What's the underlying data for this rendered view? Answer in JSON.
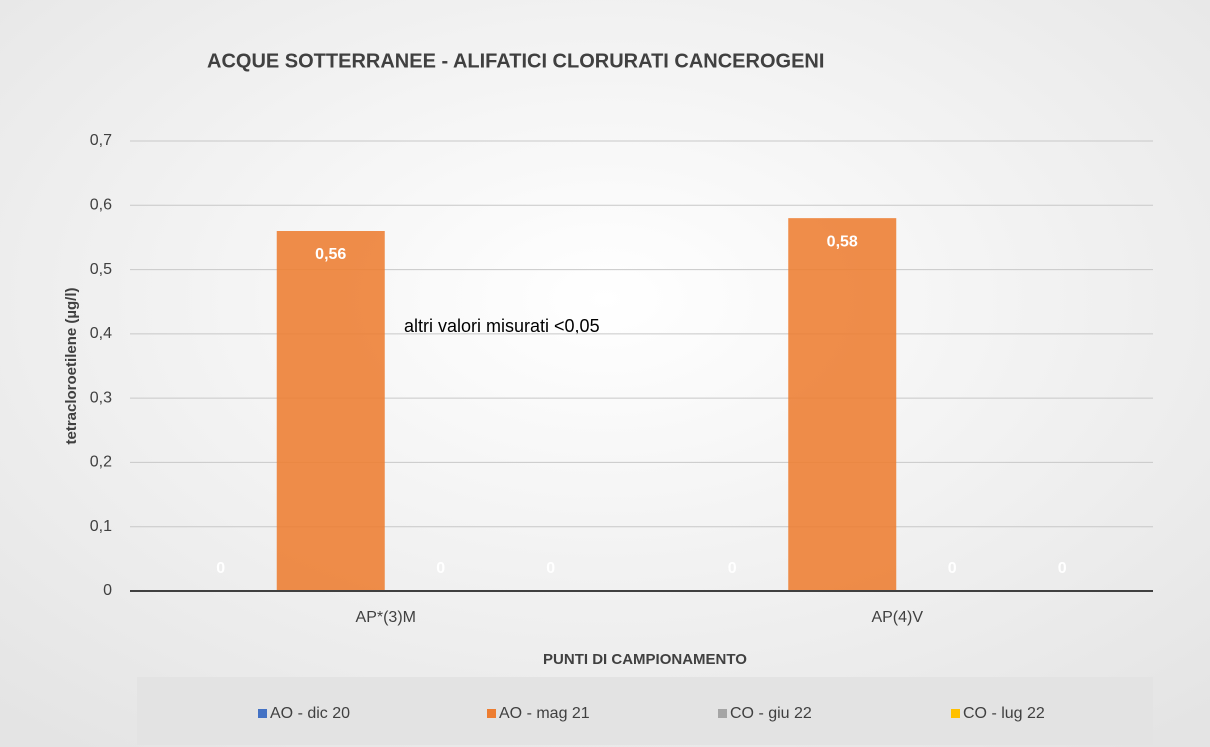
{
  "chart_data": {
    "type": "bar",
    "title": "ACQUE SOTTERRANEE - ALIFATICI CLORURATI CANCEROGENI",
    "y_label": "tetracloroetilene (µg/l)",
    "x_label": "PUNTI DI CAMPIONAMENTO",
    "annotation": "altri valori misurati  <0,05",
    "categories": [
      "AP*(3)M",
      "AP(4)V"
    ],
    "series": [
      {
        "name": "AO - dic 20",
        "color": "#4472c4",
        "values": [
          0,
          0
        ]
      },
      {
        "name": "AO - mag 21",
        "color": "#ed7d31",
        "values": [
          0.56,
          0.58
        ],
        "value_labels": [
          "0,56",
          "0,58"
        ]
      },
      {
        "name": "CO - giu 22",
        "color": "#a5a5a5",
        "values": [
          0,
          0
        ]
      },
      {
        "name": "CO - lug 22",
        "color": "#ffc000",
        "values": [
          0,
          0
        ]
      }
    ],
    "ylim": [
      0,
      0.7
    ],
    "yticks": [
      0,
      {
        "value": 0.1,
        "label": "0,1"
      },
      {
        "value": 0.2,
        "label": "0,2"
      },
      {
        "value": 0.3,
        "label": "0,3"
      },
      {
        "value": 0.4,
        "label": "0,4"
      },
      {
        "value": 0.5,
        "label": "0,5"
      },
      {
        "value": 0.6,
        "label": "0,6"
      },
      {
        "value": 0.7,
        "label": "0,7"
      }
    ],
    "grid": true,
    "legend": "bottom"
  }
}
